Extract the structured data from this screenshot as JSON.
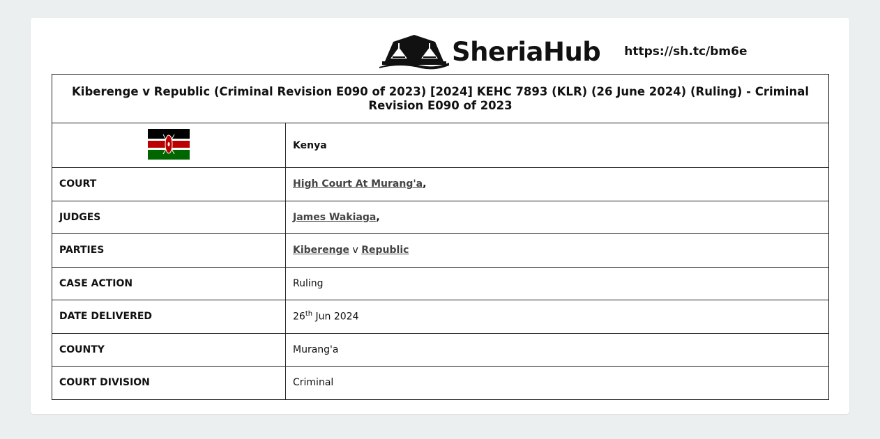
{
  "header": {
    "logo_text": "SheriaHub",
    "short_url": "https://sh.tc/bm6e"
  },
  "title": "Kiberenge v Republic (Criminal Revision E090 of 2023) [2024] KEHC 7893 (KLR) (26 June 2024) (Ruling) - Criminal Revision E090 of 2023",
  "country": {
    "flag_icon": "kenya-flag-icon",
    "name": "Kenya"
  },
  "rows": {
    "court": {
      "label": "COURT",
      "value": "High Court At Murang'a",
      "suffix": ","
    },
    "judges": {
      "label": "JUDGES",
      "value": "James Wakiaga",
      "suffix": ","
    },
    "parties": {
      "label": "PARTIES",
      "party1": "Kiberenge",
      "sep": " v ",
      "party2": "Republic"
    },
    "case_action": {
      "label": "CASE ACTION",
      "value": "Ruling"
    },
    "date_delivered": {
      "label": "DATE DELIVERED",
      "day": "26",
      "ordinal": "th",
      "rest": " Jun 2024"
    },
    "county": {
      "label": "COUNTY",
      "value": "Murang'a"
    },
    "court_division": {
      "label": "COURT DIVISION",
      "value": "Criminal"
    }
  }
}
